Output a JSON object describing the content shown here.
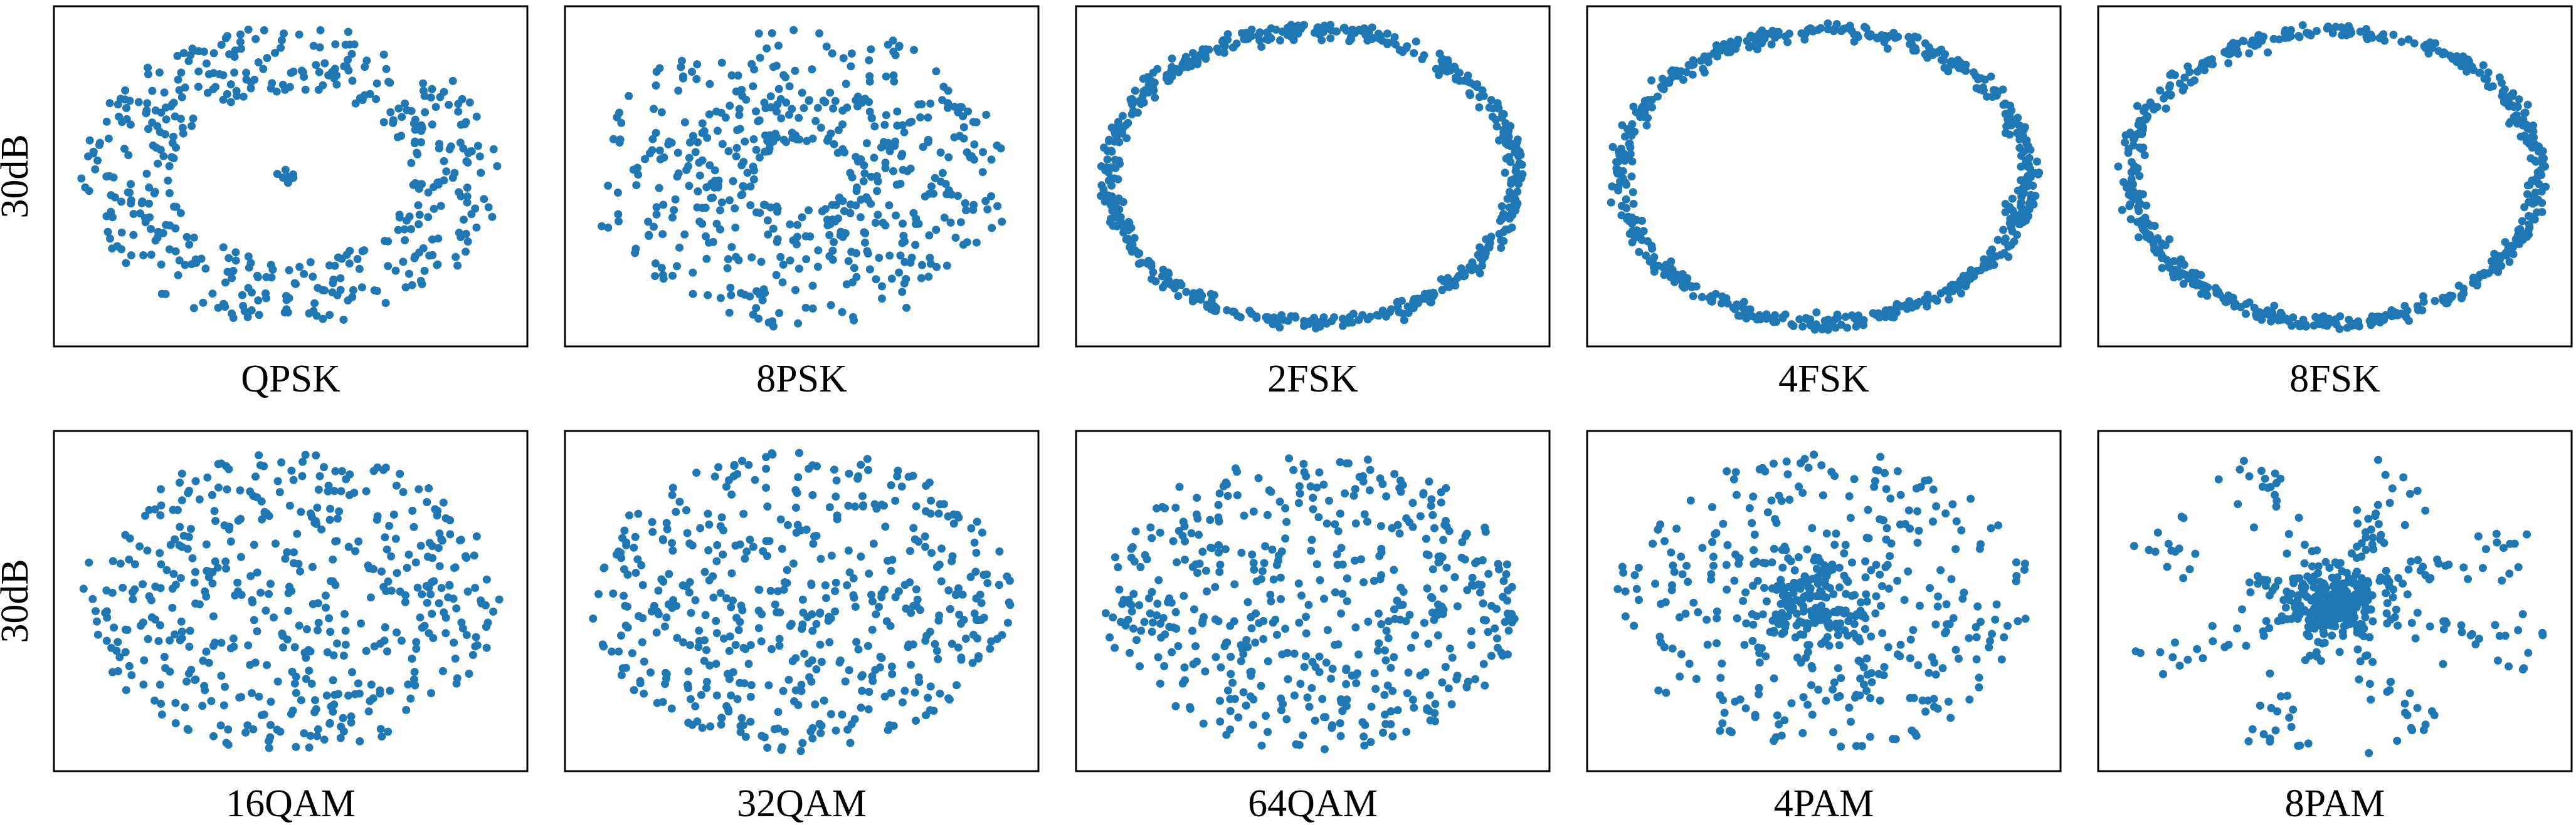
{
  "figure": {
    "row_labels": [
      "30dB",
      "30dB"
    ]
  },
  "colors": {
    "point": "#1f77b4",
    "frame": "#000000"
  },
  "chart_data": [
    {
      "type": "scatter",
      "xlabel": "QPSK",
      "grid": false,
      "pattern": "ring-center",
      "n": 460
    },
    {
      "type": "scatter",
      "xlabel": "8PSK",
      "grid": false,
      "pattern": "ring-wide",
      "n": 520
    },
    {
      "type": "scatter",
      "xlabel": "2FSK",
      "grid": false,
      "pattern": "circle",
      "n": 560
    },
    {
      "type": "scatter",
      "xlabel": "4FSK",
      "grid": false,
      "pattern": "circle",
      "n": 560
    },
    {
      "type": "scatter",
      "xlabel": "8FSK",
      "grid": false,
      "pattern": "circle",
      "n": 560
    },
    {
      "type": "scatter",
      "xlabel": "16QAM",
      "grid": false,
      "pattern": "cloud",
      "n": 480
    },
    {
      "type": "scatter",
      "xlabel": "32QAM",
      "grid": false,
      "pattern": "cloud",
      "n": 500
    },
    {
      "type": "scatter",
      "xlabel": "64QAM",
      "grid": false,
      "pattern": "cloud",
      "n": 500
    },
    {
      "type": "scatter",
      "xlabel": "4PAM",
      "grid": false,
      "pattern": "center-ring",
      "n": 500
    },
    {
      "type": "scatter",
      "xlabel": "8PAM",
      "grid": false,
      "pattern": "star",
      "n": 480
    }
  ]
}
